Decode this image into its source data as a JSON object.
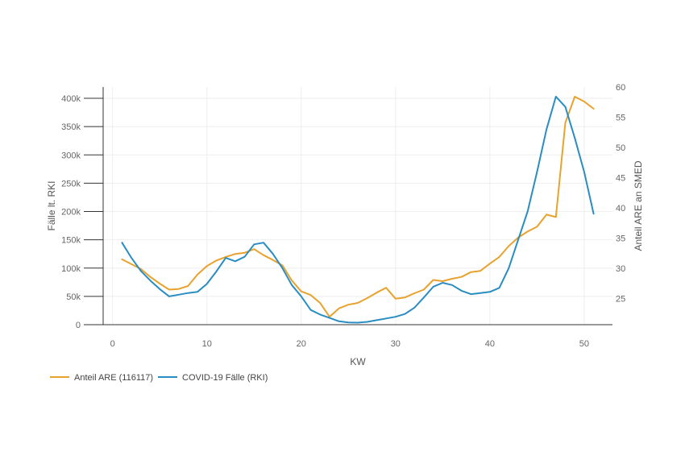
{
  "chart_data": {
    "type": "line",
    "title": "",
    "xlabel": "KW",
    "ylabel_left": "Fälle lt. RKI",
    "ylabel_right": "Anteil ARE an SMED",
    "xlim": [
      -1,
      53
    ],
    "ylim_left": [
      0,
      420000
    ],
    "ylim_right": [
      20.7,
      60
    ],
    "x_ticks": [
      0,
      10,
      20,
      30,
      40,
      50
    ],
    "x_tick_labels": [
      "0",
      "10",
      "20",
      "30",
      "40",
      "50"
    ],
    "y_left_ticks": [
      0,
      50000,
      100000,
      150000,
      200000,
      250000,
      300000,
      350000,
      400000
    ],
    "y_left_tick_labels": [
      "0",
      "50k",
      "100k",
      "150k",
      "200k",
      "250k",
      "300k",
      "350k",
      "400k"
    ],
    "y_right_ticks": [
      25,
      30,
      35,
      40,
      45,
      50,
      55,
      60
    ],
    "y_right_tick_labels": [
      "25",
      "30",
      "35",
      "40",
      "45",
      "50",
      "55",
      "60"
    ],
    "grid": true,
    "legend_position": "bottom-left",
    "series": [
      {
        "name": "Anteil ARE (116117)",
        "axis": "right",
        "color": "#E8A22E",
        "x": [
          1,
          2,
          3,
          4,
          5,
          6,
          7,
          8,
          9,
          10,
          11,
          12,
          13,
          14,
          15,
          16,
          17,
          18,
          19,
          20,
          21,
          22,
          23,
          24,
          25,
          26,
          27,
          28,
          29,
          30,
          31,
          32,
          33,
          34,
          35,
          36,
          37,
          38,
          39,
          40,
          41,
          42,
          43,
          44,
          45,
          46,
          47,
          48,
          49,
          50,
          51
        ],
        "values": [
          31.5,
          30.7,
          29.9,
          28.6,
          27.5,
          26.5,
          26.6,
          27.1,
          29,
          30.4,
          31.3,
          31.9,
          32.4,
          32.6,
          33.2,
          32.2,
          31.4,
          30.5,
          28,
          26.2,
          25.6,
          24.3,
          22,
          23.4,
          24,
          24.3,
          25.1,
          26,
          26.8,
          25,
          25.2,
          25.9,
          26.5,
          28.1,
          27.9,
          28.3,
          28.6,
          29.4,
          29.6,
          30.8,
          31.9,
          33.7,
          35.1,
          36.1,
          36.9,
          38.9,
          38.5,
          54.1,
          58.4,
          57.6,
          56.4
        ]
      },
      {
        "name": "COVID-19 Fälle (RKI)",
        "axis": "left",
        "color": "#2A8DC2",
        "x": [
          1,
          2,
          3,
          4,
          5,
          6,
          7,
          8,
          9,
          10,
          11,
          12,
          13,
          14,
          15,
          16,
          17,
          18,
          19,
          20,
          21,
          22,
          23,
          24,
          25,
          26,
          27,
          28,
          29,
          30,
          31,
          32,
          33,
          34,
          35,
          36,
          37,
          38,
          39,
          40,
          41,
          42,
          43,
          44,
          45,
          46,
          47,
          48,
          49,
          50,
          51
        ],
        "values": [
          145000,
          118000,
          95000,
          78000,
          63000,
          50000,
          53000,
          56000,
          58000,
          72000,
          94000,
          118000,
          112000,
          120000,
          142000,
          145000,
          125000,
          100000,
          70000,
          50000,
          26000,
          18000,
          12000,
          6000,
          4000,
          3500,
          5000,
          8000,
          11000,
          14000,
          19000,
          30000,
          48000,
          67000,
          74000,
          70000,
          60000,
          54000,
          56000,
          58000,
          65000,
          100000,
          150000,
          200000,
          270000,
          345000,
          403000,
          385000,
          330000,
          270000,
          196000
        ]
      }
    ]
  }
}
